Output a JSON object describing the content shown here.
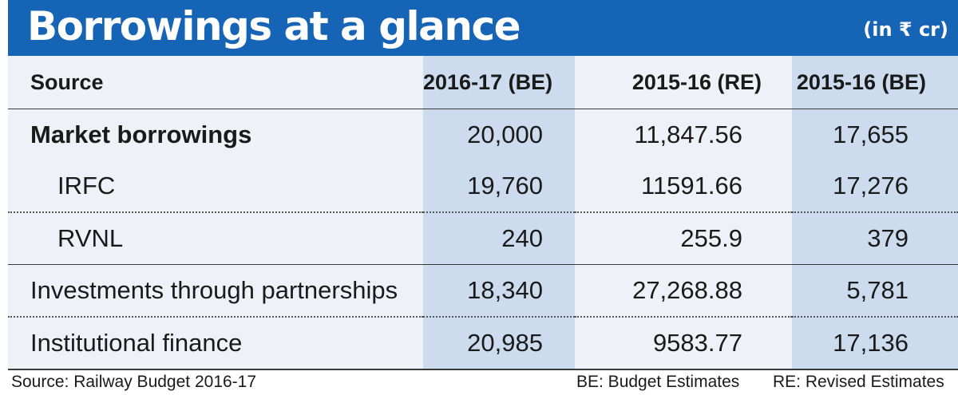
{
  "header": {
    "title": "Borrowings at a glance",
    "unit": "(in ₹ cr)"
  },
  "colors": {
    "header_bg": "#1664b6",
    "table_bg": "#eef1f7",
    "shaded_column": "#ccdcee",
    "text": "#1a1a1a"
  },
  "chart_data": {
    "type": "table",
    "title": "Borrowings at a glance",
    "unit": "(in ₹ cr)",
    "columns": [
      "Source",
      "2016-17 (BE)",
      "2015-16 (RE)",
      "2015-16 (BE)"
    ],
    "rows": [
      {
        "source": "Market borrowings",
        "values": [
          "20,000",
          "11,847.56",
          "17,655"
        ]
      },
      {
        "source": "IRFC",
        "values": [
          "19,760",
          "11591.66",
          "17,276"
        ]
      },
      {
        "source": "RVNL",
        "values": [
          "240",
          "255.9",
          "379"
        ]
      },
      {
        "source": "Investments through partnerships",
        "values": [
          "18,340",
          "27,268.88",
          "5,781"
        ]
      },
      {
        "source": "Institutional finance",
        "values": [
          "20,985",
          "9583.77",
          "17,136"
        ]
      }
    ]
  },
  "footer": {
    "source": "Source: Railway Budget 2016-17",
    "be": "BE: Budget Estimates",
    "re": "RE: Revised Estimates"
  }
}
